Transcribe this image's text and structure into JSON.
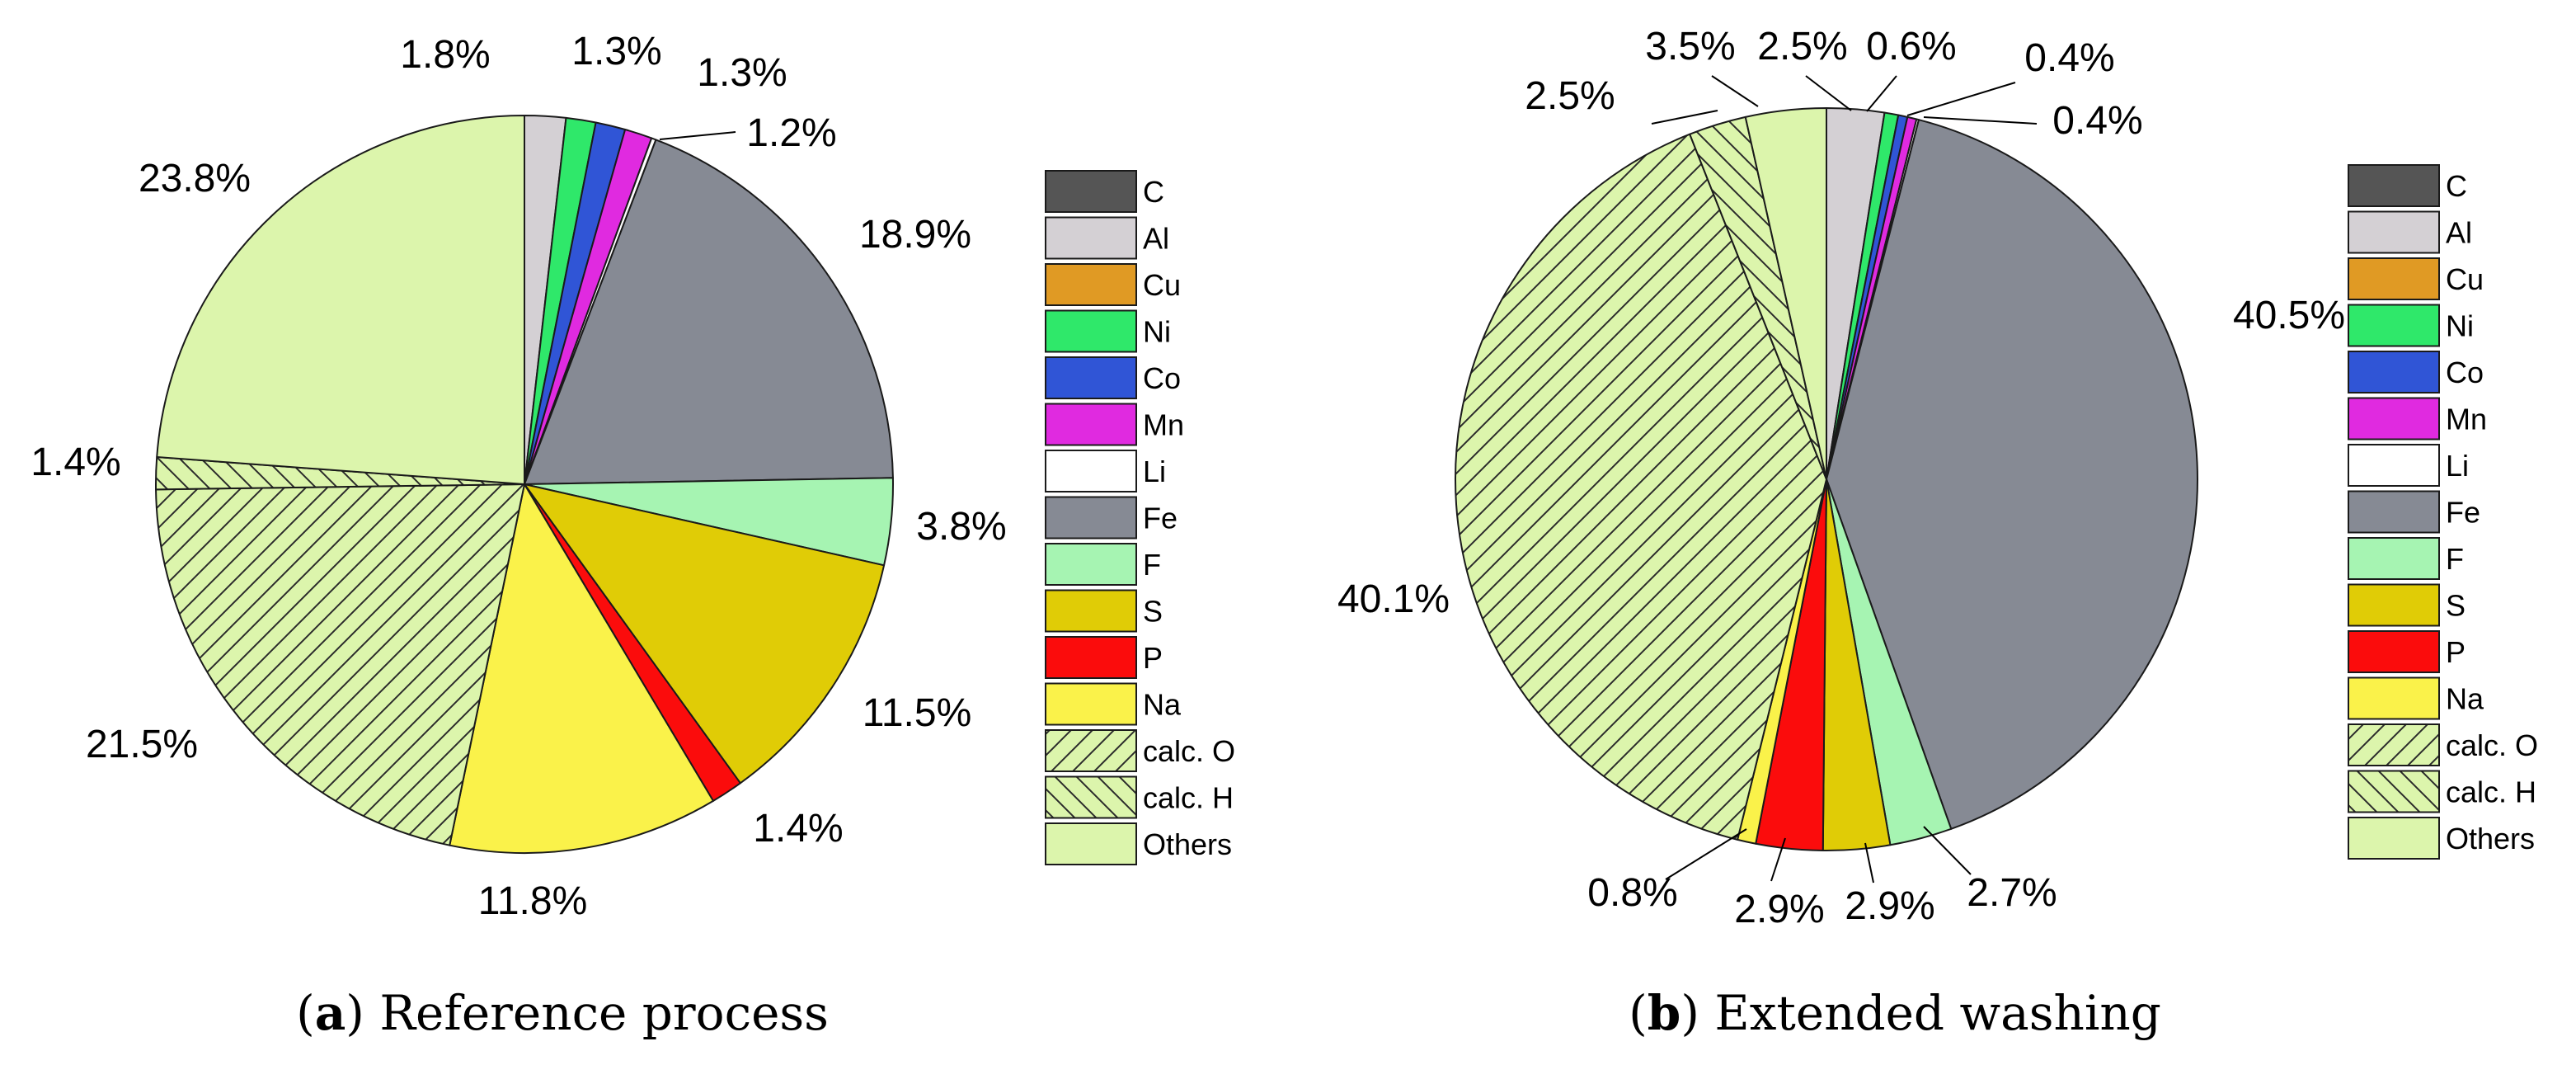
{
  "palette": {
    "C": "#555555",
    "Al": "#d4d0d4",
    "Cu": "#e09a24",
    "Ni": "#2fe86a",
    "Co": "#3055d6",
    "Mn": "#e02ae0",
    "Li": "#ffffff",
    "Fe": "#868a94",
    "F": "#a6f4b2",
    "S": "#e0cc06",
    "P": "#fb0c0c",
    "Na": "#faf24a",
    "calc. O": "#dcf5ac",
    "calc. H": "#dcf5ac",
    "Others": "#dcf5ac"
  },
  "chart_data": [
    {
      "type": "pie",
      "caption_letter": "a",
      "caption_text": "Reference process",
      "legend": [
        "C",
        "Al",
        "Cu",
        "Ni",
        "Co",
        "Mn",
        "Li",
        "Fe",
        "F",
        "S",
        "P",
        "Na",
        "calc. O",
        "calc. H",
        "Others"
      ],
      "slices": [
        {
          "name": "C",
          "value": 0.0,
          "label": ""
        },
        {
          "name": "Al",
          "value": 1.8,
          "label": "1.8%"
        },
        {
          "name": "Cu",
          "value": 0.0,
          "label": ""
        },
        {
          "name": "Ni",
          "value": 1.3,
          "label": "1.3%"
        },
        {
          "name": "Co",
          "value": 1.3,
          "label": "1.3%"
        },
        {
          "name": "Mn",
          "value": 1.2,
          "label": "1.2%"
        },
        {
          "name": "Li",
          "value": 0.2,
          "label": ""
        },
        {
          "name": "Fe",
          "value": 18.9,
          "label": "18.9%"
        },
        {
          "name": "F",
          "value": 3.8,
          "label": "3.8%"
        },
        {
          "name": "S",
          "value": 11.5,
          "label": "11.5%"
        },
        {
          "name": "P",
          "value": 1.4,
          "label": "1.4%"
        },
        {
          "name": "Na",
          "value": 11.8,
          "label": "11.8%"
        },
        {
          "name": "calc. O",
          "value": 21.5,
          "label": "21.5%"
        },
        {
          "name": "calc. H",
          "value": 1.4,
          "label": "1.4%"
        },
        {
          "name": "Others",
          "value": 23.8,
          "label": "23.8%"
        }
      ]
    },
    {
      "type": "pie",
      "caption_letter": "b",
      "caption_text": "Extended washing",
      "legend": [
        "C",
        "Al",
        "Cu",
        "Ni",
        "Co",
        "Mn",
        "Li",
        "Fe",
        "F",
        "S",
        "P",
        "Na",
        "calc. O",
        "calc. H",
        "Others"
      ],
      "slices": [
        {
          "name": "C",
          "value": 0.0,
          "label": ""
        },
        {
          "name": "Al",
          "value": 2.5,
          "label": "2.5%"
        },
        {
          "name": "Cu",
          "value": 0.0,
          "label": ""
        },
        {
          "name": "Ni",
          "value": 0.6,
          "label": "0.6%"
        },
        {
          "name": "Co",
          "value": 0.4,
          "label": "0.4%"
        },
        {
          "name": "Mn",
          "value": 0.4,
          "label": "0.4%"
        },
        {
          "name": "Li",
          "value": 0.1,
          "label": ""
        },
        {
          "name": "Fe",
          "value": 40.5,
          "label": "40.5%"
        },
        {
          "name": "F",
          "value": 2.7,
          "label": "2.7%"
        },
        {
          "name": "S",
          "value": 2.9,
          "label": "2.9%"
        },
        {
          "name": "P",
          "value": 2.9,
          "label": "2.9%"
        },
        {
          "name": "Na",
          "value": 0.8,
          "label": "0.8%"
        },
        {
          "name": "calc. O",
          "value": 40.1,
          "label": "40.1%"
        },
        {
          "name": "calc. H",
          "value": 2.5,
          "label": "2.5%"
        },
        {
          "name": "Others",
          "value": 3.5,
          "label": "3.5%"
        }
      ]
    }
  ]
}
